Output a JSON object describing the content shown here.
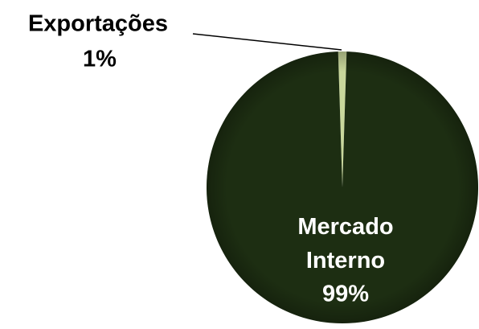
{
  "chart_data": {
    "type": "pie",
    "categories": [
      "Exportações",
      "Mercado Interno"
    ],
    "values": [
      1,
      99
    ],
    "value_labels": [
      "1%",
      "99%"
    ],
    "colors": [
      "#c9d89c",
      "#1d2e12"
    ]
  }
}
